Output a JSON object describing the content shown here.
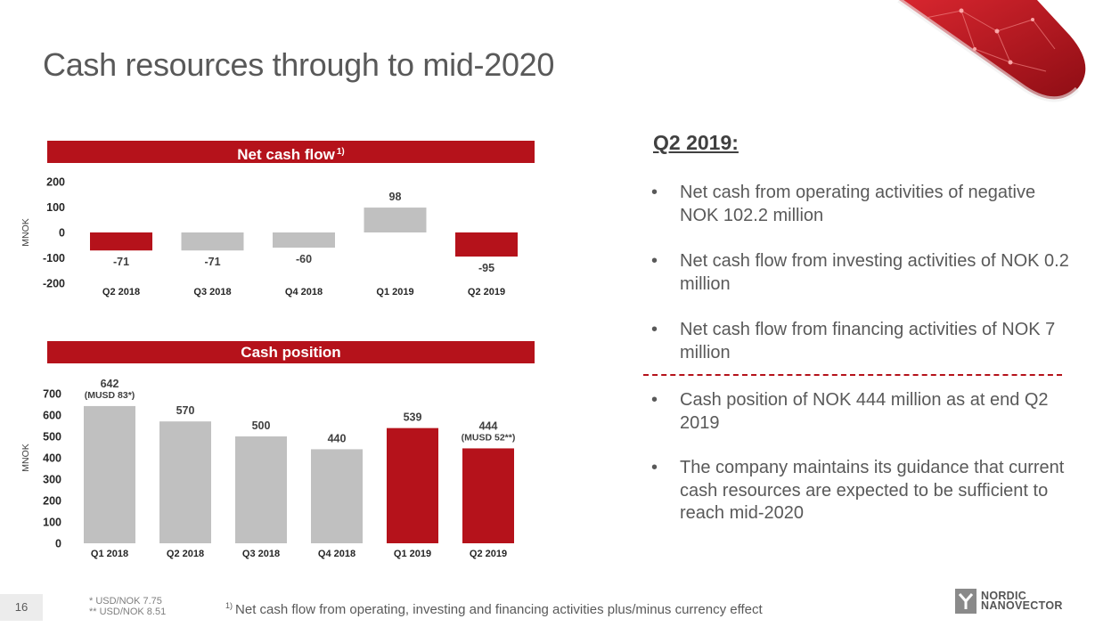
{
  "slide": {
    "title": "Cash resources through to mid-2020",
    "page_number": "16"
  },
  "colors": {
    "accent": "#b5121b",
    "neutral_bar": "#c0c0c0",
    "text": "#595959"
  },
  "chart_data": [
    {
      "type": "bar",
      "title": "Net cash flow",
      "title_footnote_mark": "1)",
      "ylabel": "MNOK",
      "categories": [
        "Q2 2018",
        "Q3 2018",
        "Q4 2018",
        "Q1 2019",
        "Q2 2019"
      ],
      "values": [
        -71,
        -71,
        -60,
        98,
        -95
      ],
      "value_labels": [
        "-71",
        "-71",
        "-60",
        "98",
        "-95"
      ],
      "bar_colors": [
        "#b5121b",
        "#c0c0c0",
        "#c0c0c0",
        "#c0c0c0",
        "#b5121b"
      ],
      "ylim": [
        -200,
        200
      ],
      "yticks": [
        "200",
        "100",
        "0",
        "-100",
        "-200"
      ],
      "ytick_values": [
        200,
        100,
        0,
        -100,
        -200
      ],
      "grid": false
    },
    {
      "type": "bar",
      "title": "Cash position",
      "ylabel": "MNOK",
      "categories": [
        "Q1 2018",
        "Q2 2018",
        "Q3 2018",
        "Q4 2018",
        "Q1 2019",
        "Q2 2019"
      ],
      "values": [
        642,
        570,
        500,
        440,
        539,
        444
      ],
      "value_labels": [
        "642",
        "570",
        "500",
        "440",
        "539",
        "444"
      ],
      "value_sublabels": [
        "(MUSD 83*)",
        "",
        "",
        "",
        "",
        "(MUSD 52**)"
      ],
      "bar_colors": [
        "#c0c0c0",
        "#c0c0c0",
        "#c0c0c0",
        "#c0c0c0",
        "#b5121b",
        "#b5121b"
      ],
      "ylim": [
        0,
        700
      ],
      "yticks": [
        "700",
        "600",
        "500",
        "400",
        "300",
        "200",
        "100",
        "0"
      ],
      "ytick_values": [
        700,
        600,
        500,
        400,
        300,
        200,
        100,
        0
      ],
      "grid": false
    }
  ],
  "summary": {
    "heading": "Q2 2019:",
    "bullets_top": [
      "Net cash from operating activities of negative NOK 102.2 million",
      "Net cash flow from investing activities of NOK 0.2 million",
      "Net cash flow from financing activities of NOK 7 million"
    ],
    "bullets_bottom": [
      "Cash position of NOK 444 million as at end Q2 2019",
      "The company maintains its guidance that current cash resources are expected to be sufficient to reach mid-2020"
    ]
  },
  "footer": {
    "fx_note_1": "*  USD/NOK 7.75",
    "fx_note_2": "** USD/NOK 8.51",
    "footnote_mark": "1)",
    "footnote_text": "Net cash flow from operating, investing and financing activities plus/minus currency effect",
    "logo_line1": "NORDIC",
    "logo_line2": "NANOVECTOR",
    "logo_icon": "nordic-nanovector-y-mark"
  }
}
